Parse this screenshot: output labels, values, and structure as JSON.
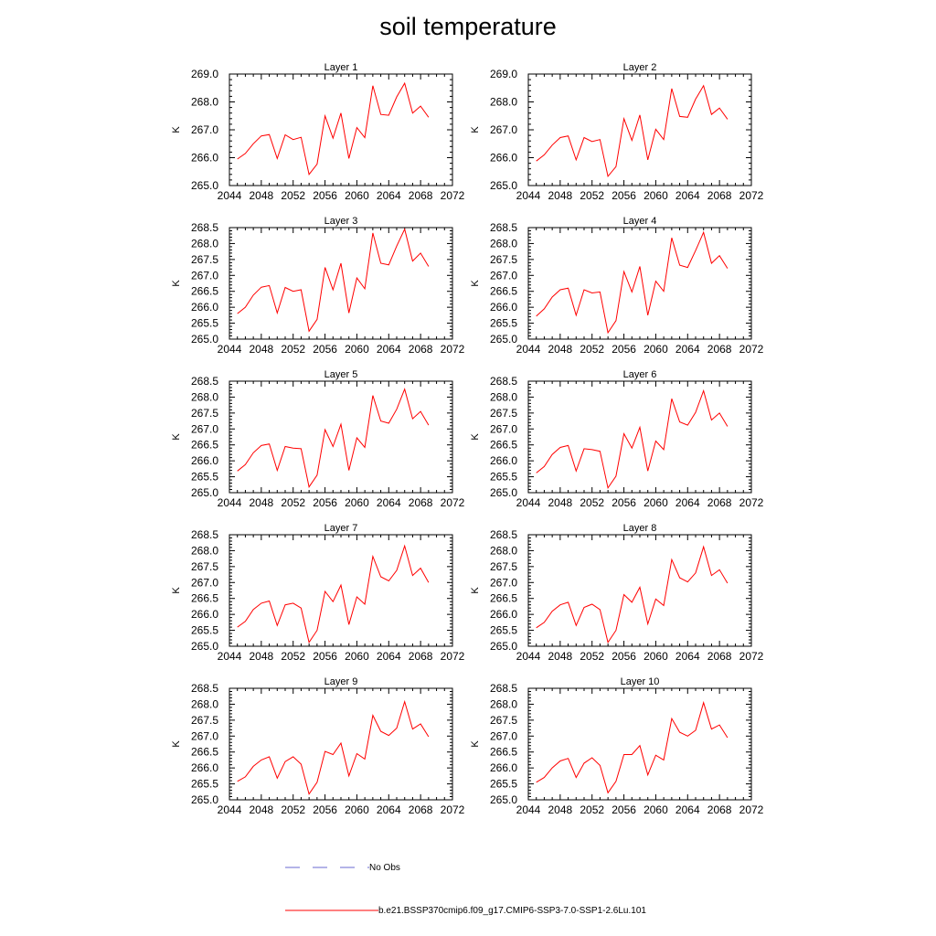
{
  "title": "soil temperature",
  "legend": {
    "items": [
      {
        "label": "No Obs",
        "color": "#6a6ad0",
        "style": "dashed"
      },
      {
        "label": "b.e21.BSSP370cmip6.f09_g17.CMIP6-SSP3-7.0-SSP1-2.6Lu.101",
        "color": "#ff0000",
        "style": "solid"
      }
    ]
  },
  "chart_data": [
    {
      "type": "line",
      "title": "Layer 1",
      "ylabel": "K",
      "xlim": [
        2044,
        2072
      ],
      "ylim": [
        265.0,
        269.0
      ],
      "xticks": [
        "2044",
        "2048",
        "2052",
        "2056",
        "2060",
        "2064",
        "2068",
        "2072"
      ],
      "yticks": [
        "265.0",
        "266.0",
        "267.0",
        "268.0",
        "269.0"
      ],
      "x": [
        2045,
        2046,
        2047,
        2048,
        2049,
        2050,
        2051,
        2052,
        2053,
        2054,
        2055,
        2056,
        2057,
        2058,
        2059,
        2060,
        2061,
        2062,
        2063,
        2064,
        2065,
        2066,
        2067,
        2068,
        2069
      ],
      "series": [
        {
          "name": "b.e21.BSSP370cmip6.f09_g17.CMIP6-SSP3-7.0-SSP1-2.6Lu.101",
          "color": "#ff0000",
          "values": [
            265.95,
            266.15,
            266.5,
            266.78,
            266.83,
            265.97,
            266.82,
            266.65,
            266.73,
            265.4,
            265.77,
            267.5,
            266.7,
            267.6,
            265.97,
            267.08,
            266.72,
            268.58,
            267.55,
            267.52,
            268.18,
            268.67,
            267.6,
            267.85,
            267.45
          ]
        }
      ]
    },
    {
      "type": "line",
      "title": "Layer 2",
      "ylabel": "K",
      "xlim": [
        2044,
        2072
      ],
      "ylim": [
        265.0,
        269.0
      ],
      "xticks": [
        "2044",
        "2048",
        "2052",
        "2056",
        "2060",
        "2064",
        "2068",
        "2072"
      ],
      "yticks": [
        "265.0",
        "266.0",
        "267.0",
        "268.0",
        "269.0"
      ],
      "x": [
        2045,
        2046,
        2047,
        2048,
        2049,
        2050,
        2051,
        2052,
        2053,
        2054,
        2055,
        2056,
        2057,
        2058,
        2059,
        2060,
        2061,
        2062,
        2063,
        2064,
        2065,
        2066,
        2067,
        2068,
        2069
      ],
      "series": [
        {
          "name": "b.e21.BSSP370cmip6.f09_g17.CMIP6-SSP3-7.0-SSP1-2.6Lu.101",
          "color": "#ff0000",
          "values": [
            265.88,
            266.1,
            266.45,
            266.72,
            266.78,
            265.92,
            266.72,
            266.58,
            266.65,
            265.33,
            265.68,
            267.4,
            266.62,
            267.53,
            265.92,
            267.02,
            266.65,
            268.48,
            267.48,
            267.45,
            268.1,
            268.58,
            267.55,
            267.78,
            267.38
          ]
        }
      ]
    },
    {
      "type": "line",
      "title": "Layer 3",
      "ylabel": "K",
      "xlim": [
        2044,
        2072
      ],
      "ylim": [
        265.0,
        268.5
      ],
      "xticks": [
        "2044",
        "2048",
        "2052",
        "2056",
        "2060",
        "2064",
        "2068",
        "2072"
      ],
      "yticks": [
        "265.0",
        "265.5",
        "266.0",
        "266.5",
        "267.0",
        "267.5",
        "268.0",
        "268.5"
      ],
      "x": [
        2045,
        2046,
        2047,
        2048,
        2049,
        2050,
        2051,
        2052,
        2053,
        2054,
        2055,
        2056,
        2057,
        2058,
        2059,
        2060,
        2061,
        2062,
        2063,
        2064,
        2065,
        2066,
        2067,
        2068,
        2069
      ],
      "series": [
        {
          "name": "b.e21.BSSP370cmip6.f09_g17.CMIP6-SSP3-7.0-SSP1-2.6Lu.101",
          "color": "#ff0000",
          "values": [
            265.8,
            266.0,
            266.38,
            266.63,
            266.68,
            265.82,
            266.62,
            266.5,
            266.55,
            265.25,
            265.62,
            267.25,
            266.55,
            267.38,
            265.82,
            266.92,
            266.58,
            268.33,
            267.38,
            267.33,
            267.92,
            268.45,
            267.45,
            267.7,
            267.28
          ]
        }
      ]
    },
    {
      "type": "line",
      "title": "Layer 4",
      "ylabel": "K",
      "xlim": [
        2044,
        2072
      ],
      "ylim": [
        265.0,
        268.5
      ],
      "xticks": [
        "2044",
        "2048",
        "2052",
        "2056",
        "2060",
        "2064",
        "2068",
        "2072"
      ],
      "yticks": [
        "265.0",
        "265.5",
        "266.0",
        "266.5",
        "267.0",
        "267.5",
        "268.0",
        "268.5"
      ],
      "x": [
        2045,
        2046,
        2047,
        2048,
        2049,
        2050,
        2051,
        2052,
        2053,
        2054,
        2055,
        2056,
        2057,
        2058,
        2059,
        2060,
        2061,
        2062,
        2063,
        2064,
        2065,
        2066,
        2067,
        2068,
        2069
      ],
      "series": [
        {
          "name": "b.e21.BSSP370cmip6.f09_g17.CMIP6-SSP3-7.0-SSP1-2.6Lu.101",
          "color": "#ff0000",
          "values": [
            265.72,
            265.95,
            266.32,
            266.55,
            266.6,
            265.75,
            266.55,
            266.45,
            266.48,
            265.2,
            265.58,
            267.12,
            266.48,
            267.28,
            265.75,
            266.82,
            266.5,
            268.18,
            267.32,
            267.25,
            267.78,
            268.35,
            267.38,
            267.62,
            267.22
          ]
        }
      ]
    },
    {
      "type": "line",
      "title": "Layer 5",
      "ylabel": "K",
      "xlim": [
        2044,
        2072
      ],
      "ylim": [
        265.0,
        268.5
      ],
      "xticks": [
        "2044",
        "2048",
        "2052",
        "2056",
        "2060",
        "2064",
        "2068",
        "2072"
      ],
      "yticks": [
        "265.0",
        "265.5",
        "266.0",
        "266.5",
        "267.0",
        "267.5",
        "268.0",
        "268.5"
      ],
      "x": [
        2045,
        2046,
        2047,
        2048,
        2049,
        2050,
        2051,
        2052,
        2053,
        2054,
        2055,
        2056,
        2057,
        2058,
        2059,
        2060,
        2061,
        2062,
        2063,
        2064,
        2065,
        2066,
        2067,
        2068,
        2069
      ],
      "series": [
        {
          "name": "b.e21.BSSP370cmip6.f09_g17.CMIP6-SSP3-7.0-SSP1-2.6Lu.101",
          "color": "#ff0000",
          "values": [
            265.68,
            265.88,
            266.25,
            266.48,
            266.53,
            265.7,
            266.45,
            266.4,
            266.38,
            265.18,
            265.55,
            266.98,
            266.45,
            267.15,
            265.7,
            266.72,
            266.42,
            268.05,
            267.25,
            267.18,
            267.62,
            268.25,
            267.32,
            267.55,
            267.12
          ]
        }
      ]
    },
    {
      "type": "line",
      "title": "Layer 6",
      "ylabel": "K",
      "xlim": [
        2044,
        2072
      ],
      "ylim": [
        265.0,
        268.5
      ],
      "xticks": [
        "2044",
        "2048",
        "2052",
        "2056",
        "2060",
        "2064",
        "2068",
        "2072"
      ],
      "yticks": [
        "265.0",
        "265.5",
        "266.0",
        "266.5",
        "267.0",
        "267.5",
        "268.0",
        "268.5"
      ],
      "x": [
        2045,
        2046,
        2047,
        2048,
        2049,
        2050,
        2051,
        2052,
        2053,
        2054,
        2055,
        2056,
        2057,
        2058,
        2059,
        2060,
        2061,
        2062,
        2063,
        2064,
        2065,
        2066,
        2067,
        2068,
        2069
      ],
      "series": [
        {
          "name": "b.e21.BSSP370cmip6.f09_g17.CMIP6-SSP3-7.0-SSP1-2.6Lu.101",
          "color": "#ff0000",
          "values": [
            265.62,
            265.82,
            266.2,
            266.42,
            266.48,
            265.68,
            266.38,
            266.35,
            266.3,
            265.15,
            265.52,
            266.85,
            266.4,
            267.05,
            265.68,
            266.62,
            266.35,
            267.95,
            267.22,
            267.12,
            267.52,
            268.2,
            267.28,
            267.5,
            267.08
          ]
        }
      ]
    },
    {
      "type": "line",
      "title": "Layer 7",
      "ylabel": "K",
      "xlim": [
        2044,
        2072
      ],
      "ylim": [
        265.0,
        268.5
      ],
      "xticks": [
        "2044",
        "2048",
        "2052",
        "2056",
        "2060",
        "2064",
        "2068",
        "2072"
      ],
      "yticks": [
        "265.0",
        "265.5",
        "266.0",
        "266.5",
        "267.0",
        "267.5",
        "268.0",
        "268.5"
      ],
      "x": [
        2045,
        2046,
        2047,
        2048,
        2049,
        2050,
        2051,
        2052,
        2053,
        2054,
        2055,
        2056,
        2057,
        2058,
        2059,
        2060,
        2061,
        2062,
        2063,
        2064,
        2065,
        2066,
        2067,
        2068,
        2069
      ],
      "series": [
        {
          "name": "b.e21.BSSP370cmip6.f09_g17.CMIP6-SSP3-7.0-SSP1-2.6Lu.101",
          "color": "#ff0000",
          "values": [
            265.6,
            265.78,
            266.15,
            266.35,
            266.42,
            265.65,
            266.3,
            266.35,
            266.2,
            265.12,
            265.5,
            266.72,
            266.4,
            266.92,
            265.68,
            266.55,
            266.32,
            267.82,
            267.18,
            267.05,
            267.38,
            268.15,
            267.22,
            267.45,
            267.0
          ]
        }
      ]
    },
    {
      "type": "line",
      "title": "Layer 8",
      "ylabel": "K",
      "xlim": [
        2044,
        2072
      ],
      "ylim": [
        265.0,
        268.5
      ],
      "xticks": [
        "2044",
        "2048",
        "2052",
        "2056",
        "2060",
        "2064",
        "2068",
        "2072"
      ],
      "yticks": [
        "265.0",
        "265.5",
        "266.0",
        "266.5",
        "267.0",
        "267.5",
        "268.0",
        "268.5"
      ],
      "x": [
        2045,
        2046,
        2047,
        2048,
        2049,
        2050,
        2051,
        2052,
        2053,
        2054,
        2055,
        2056,
        2057,
        2058,
        2059,
        2060,
        2061,
        2062,
        2063,
        2064,
        2065,
        2066,
        2067,
        2068,
        2069
      ],
      "series": [
        {
          "name": "b.e21.BSSP370cmip6.f09_g17.CMIP6-SSP3-7.0-SSP1-2.6Lu.101",
          "color": "#ff0000",
          "values": [
            265.58,
            265.75,
            266.1,
            266.3,
            266.38,
            265.65,
            266.22,
            266.32,
            266.15,
            265.12,
            265.5,
            266.62,
            266.38,
            266.85,
            265.7,
            266.48,
            266.28,
            267.72,
            267.15,
            267.02,
            267.3,
            268.12,
            267.22,
            267.4,
            266.98
          ]
        }
      ]
    },
    {
      "type": "line",
      "title": "Layer 9",
      "ylabel": "K",
      "xlim": [
        2044,
        2072
      ],
      "ylim": [
        265.0,
        268.5
      ],
      "xticks": [
        "2044",
        "2048",
        "2052",
        "2056",
        "2060",
        "2064",
        "2068",
        "2072"
      ],
      "yticks": [
        "265.0",
        "265.5",
        "266.0",
        "266.5",
        "267.0",
        "267.5",
        "268.0",
        "268.5"
      ],
      "x": [
        2045,
        2046,
        2047,
        2048,
        2049,
        2050,
        2051,
        2052,
        2053,
        2054,
        2055,
        2056,
        2057,
        2058,
        2059,
        2060,
        2061,
        2062,
        2063,
        2064,
        2065,
        2066,
        2067,
        2068,
        2069
      ],
      "series": [
        {
          "name": "b.e21.BSSP370cmip6.f09_g17.CMIP6-SSP3-7.0-SSP1-2.6Lu.101",
          "color": "#ff0000",
          "values": [
            265.58,
            265.72,
            266.05,
            266.25,
            266.35,
            265.68,
            266.2,
            266.35,
            266.12,
            265.18,
            265.55,
            266.52,
            266.42,
            266.78,
            265.75,
            266.45,
            266.28,
            267.65,
            267.15,
            267.02,
            267.25,
            268.08,
            267.22,
            267.38,
            266.98
          ]
        }
      ]
    },
    {
      "type": "line",
      "title": "Layer 10",
      "ylabel": "K",
      "xlim": [
        2044,
        2072
      ],
      "ylim": [
        265.0,
        268.5
      ],
      "xticks": [
        "2044",
        "2048",
        "2052",
        "2056",
        "2060",
        "2064",
        "2068",
        "2072"
      ],
      "yticks": [
        "265.0",
        "265.5",
        "266.0",
        "266.5",
        "267.0",
        "267.5",
        "268.0",
        "268.5"
      ],
      "x": [
        2045,
        2046,
        2047,
        2048,
        2049,
        2050,
        2051,
        2052,
        2053,
        2054,
        2055,
        2056,
        2057,
        2058,
        2059,
        2060,
        2061,
        2062,
        2063,
        2064,
        2065,
        2066,
        2067,
        2068,
        2069
      ],
      "series": [
        {
          "name": "b.e21.BSSP370cmip6.f09_g17.CMIP6-SSP3-7.0-SSP1-2.6Lu.101",
          "color": "#ff0000",
          "values": [
            265.55,
            265.7,
            266.0,
            266.22,
            266.3,
            265.7,
            266.15,
            266.32,
            266.08,
            265.22,
            265.58,
            266.42,
            266.42,
            266.7,
            265.78,
            266.4,
            266.25,
            267.55,
            267.12,
            267.0,
            267.18,
            268.05,
            267.22,
            267.35,
            266.95
          ]
        }
      ]
    }
  ]
}
